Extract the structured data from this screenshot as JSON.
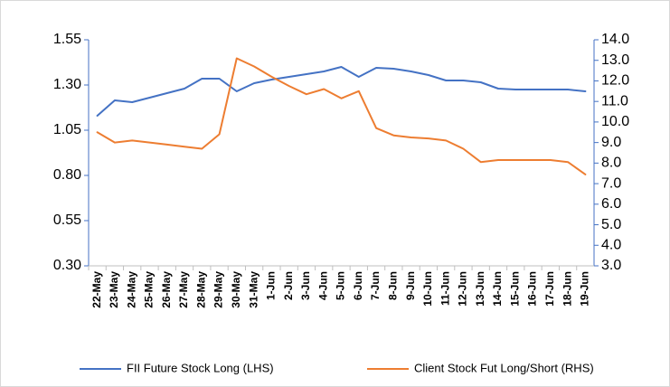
{
  "chart_data": {
    "type": "line",
    "categories": [
      "22-May",
      "23-May",
      "24-May",
      "25-May",
      "26-May",
      "27-May",
      "28-May",
      "29-May",
      "30-May",
      "31-May",
      "1-Jun",
      "2-Jun",
      "3-Jun",
      "4-Jun",
      "5-Jun",
      "6-Jun",
      "7-Jun",
      "8-Jun",
      "9-Jun",
      "10-Jun",
      "11-Jun",
      "12-Jun",
      "13-Jun",
      "14-Jun",
      "15-Jun",
      "16-Jun",
      "17-Jun",
      "18-Jun",
      "19-Jun"
    ],
    "series": [
      {
        "name": "FII Future Stock Long (LHS)",
        "color": "#4472c4",
        "values": [
          1.13,
          1.215,
          1.205,
          1.23,
          1.255,
          1.28,
          1.335,
          1.335,
          1.265,
          1.31,
          1.33,
          1.345,
          1.36,
          1.375,
          1.4,
          1.345,
          1.395,
          1.39,
          1.375,
          1.355,
          1.325,
          1.325,
          1.315,
          1.28,
          1.275,
          1.275,
          1.275,
          1.275,
          1.265
        ]
      },
      {
        "name": "Client Stock Fut Long/Short (RHS)",
        "color": "#ed7d31",
        "axis": "y2",
        "values": [
          9.5,
          9.0,
          9.1,
          9.0,
          8.9,
          8.8,
          8.7,
          9.4,
          13.1,
          12.7,
          12.2,
          11.75,
          11.35,
          11.6,
          11.15,
          11.5,
          9.7,
          9.35,
          9.25,
          9.2,
          9.1,
          8.7,
          8.05,
          8.15,
          8.15,
          8.15,
          8.15,
          8.05,
          7.45
        ]
      }
    ],
    "ylim": [
      0.3,
      1.55
    ],
    "yticks": [
      {
        "value": 0.3,
        "label": "0.30"
      },
      {
        "value": 0.55,
        "label": "0.55"
      },
      {
        "value": 0.8,
        "label": "0.80"
      },
      {
        "value": 1.05,
        "label": "1.05"
      },
      {
        "value": 1.3,
        "label": "1.30"
      },
      {
        "value": 1.55,
        "label": "1.55"
      }
    ],
    "y2lim": [
      3,
      14
    ],
    "y2ticks": [
      {
        "value": 3,
        "label": "3.0"
      },
      {
        "value": 4,
        "label": "4.0"
      },
      {
        "value": 5,
        "label": "5.0"
      },
      {
        "value": 6,
        "label": "6.0"
      },
      {
        "value": 7,
        "label": "7.0"
      },
      {
        "value": 8,
        "label": "8.0"
      },
      {
        "value": 9,
        "label": "9.0"
      },
      {
        "value": 10,
        "label": "10.0"
      },
      {
        "value": 11,
        "label": "11.0"
      },
      {
        "value": 12,
        "label": "12.0"
      },
      {
        "value": 13,
        "label": "13.0"
      },
      {
        "value": 14,
        "label": "14.0"
      }
    ],
    "legend": "bottom"
  }
}
